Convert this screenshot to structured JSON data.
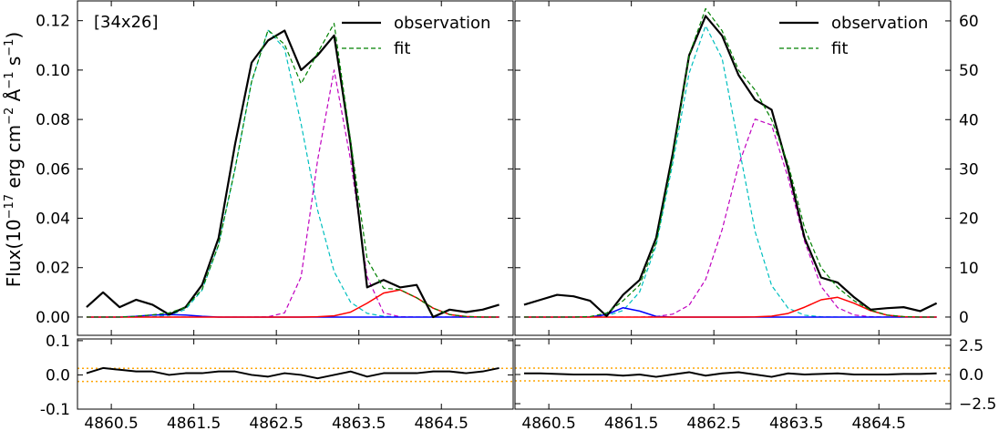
{
  "chart_data": [
    {
      "type": "line",
      "annotation": "[34x26]",
      "ylabel": [
        "Flux(10",
        "−17",
        " erg  cm",
        "−2",
        " Å",
        "−1",
        " s",
        "−1",
        ")"
      ],
      "xlim": [
        4860.09,
        4865.37
      ],
      "ylim": [
        -0.0074,
        0.128
      ],
      "xticks": [
        4860.5,
        4861.5,
        4862.5,
        4863.5,
        4864.5
      ],
      "xtick_labels": false,
      "yticks": [
        {
          "value": 0,
          "label": "0.00"
        },
        {
          "value": 0.02,
          "label": "0.02"
        },
        {
          "value": 0.04,
          "label": "0.04"
        },
        {
          "value": 0.06,
          "label": "0.06"
        },
        {
          "value": 0.08,
          "label": "0.08"
        },
        {
          "value": 0.1,
          "label": "0.10"
        },
        {
          "value": 0.12,
          "label": "0.12"
        }
      ],
      "yaxis_side": "left",
      "legend": "upper right",
      "x": [
        4860.2,
        4860.4,
        4860.6,
        4860.8,
        4861.0,
        4861.2,
        4861.4,
        4861.6,
        4861.8,
        4862.0,
        4862.2,
        4862.4,
        4862.6,
        4862.8,
        4863.0,
        4863.2,
        4863.4,
        4863.6,
        4863.8,
        4864.0,
        4864.2,
        4864.4,
        4864.6,
        4864.8,
        4865.0,
        4865.2
      ],
      "series": [
        {
          "color": "#00bfbf",
          "width": 1.2,
          "dash": "dashed",
          "values": [
            0,
            0,
            0,
            0,
            0.0001,
            0.0007,
            0.0031,
            0.0109,
            0.0292,
            0.0601,
            0.0953,
            0.1161,
            0.1087,
            0.0782,
            0.0433,
            0.0184,
            0.006,
            0.0015,
            0.0003,
            0,
            0,
            0,
            0,
            0,
            0,
            0
          ]
        },
        {
          "color": "#bf00bf",
          "width": 1.2,
          "dash": "dashed",
          "values": [
            0,
            0,
            0,
            0,
            0,
            0,
            0,
            0,
            0,
            0,
            0,
            0.0001,
            0.0017,
            0.0163,
            0.0635,
            0.1,
            0.0635,
            0.0163,
            0.0017,
            0.0001,
            0,
            0,
            0,
            0,
            0,
            0
          ]
        },
        {
          "color": "#0000ff",
          "width": 1.5,
          "dash": "solid",
          "values": [
            0,
            0,
            0,
            0.0003,
            0.0008,
            0.001,
            0.0008,
            0.0003,
            0,
            0,
            0,
            0,
            0,
            0,
            0,
            0,
            0,
            0,
            0,
            0,
            0,
            0,
            0,
            0,
            0,
            0
          ]
        },
        {
          "color": "#ff0000",
          "width": 1.5,
          "dash": "solid",
          "values": [
            0,
            0,
            0,
            0,
            0,
            0,
            0,
            0,
            0,
            0,
            0,
            0,
            0,
            0,
            0.0001,
            0.0005,
            0.002,
            0.0056,
            0.0097,
            0.011,
            0.0078,
            0.0036,
            0.001,
            0.0002,
            0,
            0
          ]
        },
        {
          "name": "observation",
          "color": "#000000",
          "width": 2.2,
          "dash": "solid",
          "values": [
            0.004,
            0.01,
            0.004,
            0.007,
            0.005,
            0.001,
            0.004,
            0.013,
            0.032,
            0.07,
            0.103,
            0.112,
            0.116,
            0.1,
            0.106,
            0.114,
            0.07,
            0.012,
            0.015,
            0.012,
            0.013,
            0,
            0.003,
            0.002,
            0.003,
            0.005
          ]
        },
        {
          "name": "fit",
          "color": "#008000",
          "width": 1.2,
          "dash": "dashed",
          "values": [
            0,
            0,
            0,
            0.0003,
            0.0009,
            0.0017,
            0.0039,
            0.0112,
            0.0292,
            0.0601,
            0.0953,
            0.1162,
            0.1104,
            0.0945,
            0.1069,
            0.1189,
            0.0715,
            0.0234,
            0.0117,
            0.0111,
            0.0078,
            0.0036,
            0.001,
            0.0002,
            0,
            0
          ]
        }
      ]
    },
    {
      "type": "line",
      "xlim": [
        4860.09,
        4865.37
      ],
      "ylim": [
        -3.7,
        64.05
      ],
      "xticks": [
        4860.5,
        4861.5,
        4862.5,
        4863.5,
        4864.5
      ],
      "xtick_labels": false,
      "yticks": [
        0,
        10,
        20,
        30,
        40,
        50,
        60
      ],
      "yaxis_side": "right",
      "legend": "upper right",
      "x": [
        4860.2,
        4860.4,
        4860.6,
        4860.8,
        4861.0,
        4861.2,
        4861.4,
        4861.6,
        4861.8,
        4862.0,
        4862.2,
        4862.4,
        4862.6,
        4862.8,
        4863.0,
        4863.2,
        4863.4,
        4863.6,
        4863.8,
        4864.0,
        4864.2,
        4864.4,
        4864.6,
        4864.8,
        4865.0,
        4865.2
      ],
      "series": [
        {
          "color": "#00bfbf",
          "width": 1.2,
          "dash": "dashed",
          "values": [
            0,
            0,
            0,
            0,
            0.04,
            0.26,
            1.32,
            5.07,
            14.5,
            31.0,
            49.4,
            59.0,
            52.4,
            34.8,
            17.3,
            6.4,
            1.8,
            0.37,
            0.06,
            0,
            0,
            0,
            0,
            0,
            0,
            0
          ]
        },
        {
          "color": "#bf00bf",
          "width": 1.2,
          "dash": "dashed",
          "values": [
            0,
            0,
            0,
            0,
            0,
            0,
            0,
            0,
            0.1,
            0.58,
            2.4,
            7.6,
            17.7,
            30.8,
            40.1,
            38.9,
            28.2,
            15.3,
            6.2,
            1.9,
            0.42,
            0.07,
            0,
            0,
            0,
            0
          ]
        },
        {
          "color": "#0000ff",
          "width": 1.5,
          "dash": "solid",
          "values": [
            0,
            0,
            0,
            0,
            0.02,
            0.5,
            1.89,
            1.21,
            0.13,
            0,
            0,
            0,
            0,
            0,
            0,
            0,
            0,
            0,
            0,
            0,
            0,
            0,
            0,
            0,
            0,
            0
          ]
        },
        {
          "color": "#ff0000",
          "width": 1.5,
          "dash": "solid",
          "values": [
            0,
            0,
            0,
            0,
            0,
            0,
            0,
            0,
            0,
            0,
            0,
            0,
            0,
            0,
            0.03,
            0.18,
            0.74,
            2.0,
            3.5,
            4.0,
            2.8,
            1.3,
            0.38,
            0.07,
            0,
            0
          ]
        },
        {
          "name": "observation",
          "color": "#000000",
          "width": 2.2,
          "dash": "solid",
          "values": [
            2.5,
            3.5,
            4.5,
            4.2,
            3.3,
            0.2,
            4.5,
            7.5,
            16,
            33,
            53,
            61,
            57,
            49,
            44,
            42,
            30,
            16,
            8,
            7,
            4,
            1.5,
            1.8,
            2.0,
            1.2,
            2.8
          ]
        },
        {
          "name": "fit",
          "color": "#008000",
          "width": 1.2,
          "dash": "dashed",
          "values": [
            0,
            0,
            0,
            0,
            0.1,
            0.8,
            3.3,
            6.5,
            15,
            32,
            53,
            62.5,
            58,
            50,
            46,
            40,
            31,
            18,
            10,
            6,
            3.3,
            1.4,
            0.4,
            0.1,
            0,
            0
          ]
        }
      ]
    },
    {
      "type": "line",
      "xlim": [
        4860.09,
        4865.37
      ],
      "ylim": [
        -0.1,
        0.105
      ],
      "xticks": [
        4860.5,
        4861.5,
        4862.5,
        4863.5,
        4864.5
      ],
      "xtick_labels": true,
      "yticks": [
        0.1,
        {
          "value": 0,
          "label": "0.0"
        },
        -0.1
      ],
      "yaxis_side": "left",
      "hlines": [
        0.019,
        -0.019
      ],
      "hline_color": "#ffa500",
      "x": [
        4860.2,
        4860.4,
        4860.6,
        4860.8,
        4861.0,
        4861.2,
        4861.4,
        4861.6,
        4861.8,
        4862.0,
        4862.2,
        4862.4,
        4862.6,
        4862.8,
        4863.0,
        4863.2,
        4863.4,
        4863.6,
        4863.8,
        4864.0,
        4864.2,
        4864.4,
        4864.6,
        4864.8,
        4865.0,
        4865.2
      ],
      "series": [
        {
          "color": "#000000",
          "width": 2,
          "dash": "solid",
          "values": [
            0.005,
            0.02,
            0.015,
            0.01,
            0.01,
            0,
            0.005,
            0.005,
            0.01,
            0.01,
            0,
            -0.005,
            0.005,
            0,
            -0.01,
            0,
            0.01,
            -0.005,
            0.005,
            0.005,
            0.005,
            0.01,
            0.01,
            0.005,
            0.01,
            0.02
          ]
        }
      ]
    },
    {
      "type": "line",
      "xlim": [
        4860.09,
        4865.37
      ],
      "ylim": [
        -2.97,
        3.05
      ],
      "xticks": [
        4860.5,
        4861.5,
        4862.5,
        4863.5,
        4864.5
      ],
      "xtick_labels": true,
      "yticks": [
        2.5,
        {
          "value": 0,
          "label": "0.0"
        },
        {
          "value": -2.5,
          "label": "−2.5"
        }
      ],
      "yaxis_side": "right",
      "hlines": [
        0.55,
        -0.55
      ],
      "hline_color": "#ffa500",
      "x": [
        4860.2,
        4860.4,
        4860.6,
        4860.8,
        4861.0,
        4861.2,
        4861.4,
        4861.6,
        4861.8,
        4862.0,
        4862.2,
        4862.4,
        4862.6,
        4862.8,
        4863.0,
        4863.2,
        4863.4,
        4863.6,
        4863.8,
        4864.0,
        4864.2,
        4864.4,
        4864.6,
        4864.8,
        4865.0,
        4865.2
      ],
      "series": [
        {
          "color": "#000000",
          "width": 2,
          "dash": "solid",
          "values": [
            0.1,
            0.1,
            0.05,
            0,
            0,
            0,
            -0.1,
            0,
            -0.2,
            0,
            0.2,
            -0.1,
            0.1,
            0.2,
            0,
            -0.2,
            0.1,
            0,
            0.05,
            0.1,
            0,
            0,
            0,
            0.05,
            0.05,
            0.1
          ]
        }
      ]
    }
  ]
}
